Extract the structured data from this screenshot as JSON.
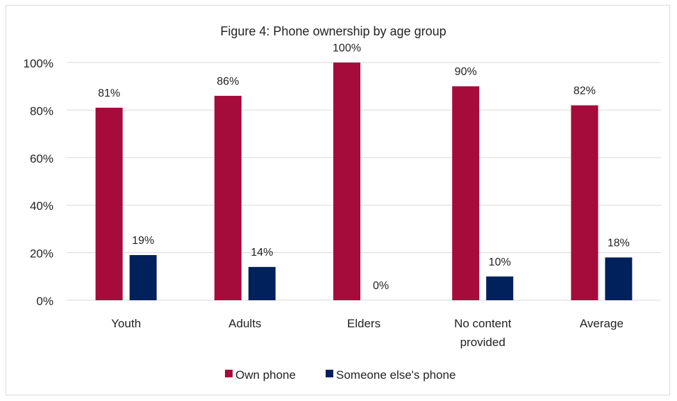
{
  "chart_data": {
    "type": "bar",
    "title": "Figure 4: Phone ownership by age group",
    "categories": [
      [
        "Youth"
      ],
      [
        "Adults"
      ],
      [
        "Elders"
      ],
      [
        "No content",
        "provided"
      ],
      [
        "Average"
      ]
    ],
    "series": [
      {
        "name": "Own phone",
        "values": [
          81,
          86,
          100,
          90,
          82
        ],
        "color": "#A50B3B"
      },
      {
        "name": "Someone else's phone",
        "values": [
          19,
          14,
          0,
          10,
          18
        ],
        "color": "#00215B"
      }
    ],
    "data_labels": [
      [
        "81%",
        "86%",
        "100%",
        "90%",
        "82%"
      ],
      [
        "19%",
        "14%",
        "0%",
        "10%",
        "18%"
      ]
    ],
    "ylim": [
      0,
      100
    ],
    "yticks": [
      0,
      20,
      40,
      60,
      80,
      100
    ],
    "ytick_labels": [
      "0%",
      "20%",
      "40%",
      "60%",
      "80%",
      "100%"
    ],
    "grid": "horizontal",
    "legend": "bottom",
    "axis_color": "#d9d9d9"
  }
}
